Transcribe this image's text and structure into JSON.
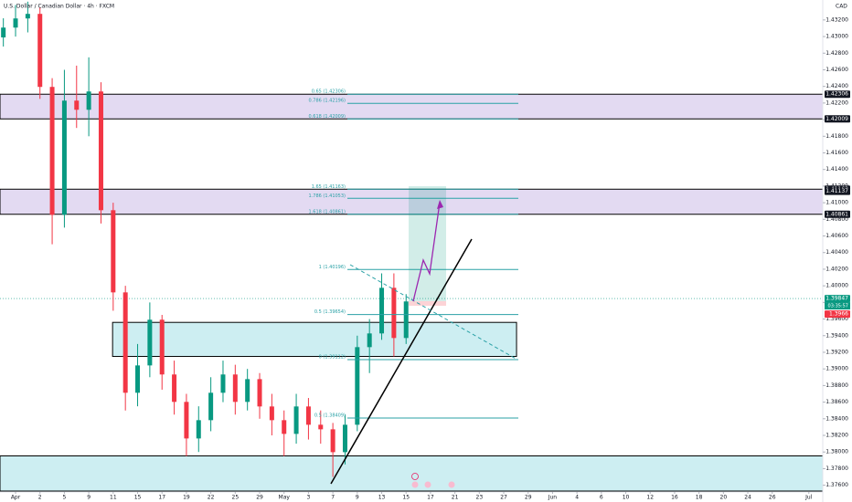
{
  "chart_data": {
    "type": "candlestick",
    "title": "U.S. Dollar / Canadian Dollar · 4h · FXCM",
    "currency": "CAD",
    "up_color": "#089981",
    "down_color": "#f23645",
    "x": [
      -2,
      0,
      2,
      4,
      6,
      8,
      10,
      12,
      14,
      16,
      18,
      20,
      22,
      24,
      26,
      28,
      30,
      32,
      34,
      36,
      38,
      40,
      42,
      44,
      46,
      48,
      50,
      52,
      54,
      56,
      58,
      60,
      62,
      64
    ],
    "open": [
      1.4299,
      1.43108,
      1.43218,
      1.43273,
      1.42394,
      1.40855,
      1.42229,
      1.42119,
      1.42339,
      1.4091,
      1.39921,
      1.38713,
      1.39042,
      1.39592,
      1.38933,
      1.38603,
      1.38163,
      1.38383,
      1.38713,
      1.38933,
      1.38603,
      1.38877,
      1.38548,
      1.38383,
      1.38218,
      1.38548,
      1.38328,
      1.38273,
      1.37998,
      1.38328,
      1.39262,
      1.39427,
      1.39976,
      1.39372
    ],
    "high": [
      1.4322,
      1.4338,
      1.4342,
      1.4335,
      1.425,
      1.426,
      1.4265,
      1.4275,
      1.4245,
      1.41,
      1.4,
      1.393,
      1.398,
      1.3965,
      1.391,
      1.387,
      1.3855,
      1.389,
      1.391,
      1.3905,
      1.39,
      1.3895,
      1.387,
      1.385,
      1.387,
      1.3865,
      1.385,
      1.3835,
      1.3845,
      1.394,
      1.396,
      1.4015,
      1.4015,
      1.399
    ],
    "low": [
      1.4288,
      1.43,
      1.4305,
      1.4225,
      1.405,
      1.407,
      1.419,
      1.418,
      1.4075,
      1.397,
      1.385,
      1.3855,
      1.389,
      1.3875,
      1.3845,
      1.3795,
      1.38,
      1.3825,
      1.386,
      1.3845,
      1.385,
      1.384,
      1.382,
      1.3795,
      1.381,
      1.3815,
      1.381,
      1.377,
      1.3785,
      1.3825,
      1.3895,
      1.3935,
      1.3915,
      1.393
    ],
    "close": [
      1.43108,
      1.43218,
      1.43273,
      1.42394,
      1.40855,
      1.42229,
      1.42119,
      1.42339,
      1.4091,
      1.39921,
      1.38713,
      1.39042,
      1.39592,
      1.38933,
      1.38603,
      1.38163,
      1.38383,
      1.38713,
      1.38933,
      1.38603,
      1.38877,
      1.38548,
      1.38383,
      1.38218,
      1.38548,
      1.38328,
      1.38273,
      1.37998,
      1.38328,
      1.39262,
      1.39427,
      1.39976,
      1.39372,
      1.39812
    ],
    "xlim": [
      -2.55,
      132.28
    ],
    "xticks": [
      {
        "value": 0,
        "label": "Apr"
      },
      {
        "value": 4,
        "label": "2"
      },
      {
        "value": 8,
        "label": "5"
      },
      {
        "value": 12,
        "label": "9"
      },
      {
        "value": 16,
        "label": "11"
      },
      {
        "value": 20,
        "label": "15"
      },
      {
        "value": 24,
        "label": "17"
      },
      {
        "value": 28,
        "label": "19"
      },
      {
        "value": 32,
        "label": "22"
      },
      {
        "value": 36,
        "label": "25"
      },
      {
        "value": 40,
        "label": "29"
      },
      {
        "value": 44,
        "label": "May"
      },
      {
        "value": 48,
        "label": "3"
      },
      {
        "value": 52,
        "label": "7"
      },
      {
        "value": 56,
        "label": "9"
      },
      {
        "value": 60,
        "label": "13"
      },
      {
        "value": 64,
        "label": "15"
      },
      {
        "value": 68,
        "label": "17"
      },
      {
        "value": 72,
        "label": "21"
      },
      {
        "value": 76,
        "label": "23"
      },
      {
        "value": 80,
        "label": "27"
      },
      {
        "value": 84,
        "label": "29"
      },
      {
        "value": 88,
        "label": "Jun"
      },
      {
        "value": 92,
        "label": "4"
      },
      {
        "value": 96,
        "label": "6"
      },
      {
        "value": 100,
        "label": "10"
      },
      {
        "value": 104,
        "label": "12"
      },
      {
        "value": 108,
        "label": "16"
      },
      {
        "value": 112,
        "label": "18"
      },
      {
        "value": 116,
        "label": "20"
      },
      {
        "value": 120,
        "label": "24"
      },
      {
        "value": 124,
        "label": "26"
      },
      {
        "value": 130,
        "label": "Jul"
      }
    ],
    "ylim": [
      1.3753,
      1.4344
    ],
    "yticks": [
      {
        "value": 1.376,
        "label": "1.37600"
      },
      {
        "value": 1.378,
        "label": "1.37800"
      },
      {
        "value": 1.38,
        "label": "1.38000"
      },
      {
        "value": 1.382,
        "label": "1.38200"
      },
      {
        "value": 1.384,
        "label": "1.38400"
      },
      {
        "value": 1.386,
        "label": "1.38600"
      },
      {
        "value": 1.388,
        "label": "1.38800"
      },
      {
        "value": 1.39,
        "label": "1.39000"
      },
      {
        "value": 1.392,
        "label": "1.39200"
      },
      {
        "value": 1.394,
        "label": "1.39400"
      },
      {
        "value": 1.396,
        "label": "1.39600"
      },
      {
        "value": 1.398,
        "label": "1.39800"
      },
      {
        "value": 1.4,
        "label": "1.40000"
      },
      {
        "value": 1.402,
        "label": "1.40200"
      },
      {
        "value": 1.404,
        "label": "1.40400"
      },
      {
        "value": 1.406,
        "label": "1.40600"
      },
      {
        "value": 1.408,
        "label": "1.40800"
      },
      {
        "value": 1.41,
        "label": "1.41000"
      },
      {
        "value": 1.412,
        "label": "1.41200"
      },
      {
        "value": 1.414,
        "label": "1.41400"
      },
      {
        "value": 1.416,
        "label": "1.41600"
      },
      {
        "value": 1.418,
        "label": "1.41800"
      },
      {
        "value": 1.42,
        "label": "1.42000"
      },
      {
        "value": 1.422,
        "label": "1.42200"
      },
      {
        "value": 1.424,
        "label": "1.42400"
      },
      {
        "value": 1.426,
        "label": "1.42600"
      },
      {
        "value": 1.428,
        "label": "1.42800"
      },
      {
        "value": 1.43,
        "label": "1.43000"
      },
      {
        "value": 1.432,
        "label": "1.43200"
      }
    ],
    "zones": [
      {
        "range": [
          1.42009,
          1.42306
        ],
        "color": "#e3daf2",
        "xrange": [
          -2.55,
          132.28
        ]
      },
      {
        "range": [
          1.40861,
          1.41163
        ],
        "color": "#e3daf2",
        "xrange": [
          -2.55,
          132.28
        ]
      },
      {
        "range": [
          1.3915,
          1.3956
        ],
        "color": "#cdeef2",
        "xrange": [
          15.9,
          82.1
        ]
      },
      {
        "range": [
          1.3753,
          1.37953
        ],
        "color": "#cdeef2",
        "xrange": [
          -2.55,
          132.28
        ]
      }
    ],
    "fib_levels": [
      {
        "value": 1.42306,
        "label": "0.65 (1.42306)"
      },
      {
        "value": 1.42196,
        "label": "0.786 (1.42196)"
      },
      {
        "value": 1.42009,
        "label": "0.618 (1.42009)"
      },
      {
        "value": 1.41163,
        "label": "1.65 (1.41163)"
      },
      {
        "value": 1.41053,
        "label": "1.786 (1.41053)"
      },
      {
        "value": 1.40861,
        "label": "1.618 (1.40861)"
      },
      {
        "value": 1.40196,
        "label": "1 (1.40196)"
      },
      {
        "value": 1.39654,
        "label": "0.5 (1.39654)"
      },
      {
        "value": 1.39112,
        "label": "0 (1.39112)"
      },
      {
        "value": 1.38409,
        "label": "0.5 (1.38409)"
      }
    ],
    "fib_color": "#2aa1a6",
    "price_tags": [
      {
        "value": 1.42306,
        "color": "#131722"
      },
      {
        "value": 1.42009,
        "color": "#131722"
      },
      {
        "value": 1.41163,
        "color": "#131722"
      },
      {
        "value": 1.41137,
        "color": "#131722"
      },
      {
        "value": 1.40861,
        "color": "#131722"
      },
      {
        "value": 1.39847,
        "color": "#089981"
      },
      {
        "value": 1.3966,
        "color": "#f23645"
      }
    ],
    "countdown": "03:35:57",
    "last_price": 1.39847
  }
}
